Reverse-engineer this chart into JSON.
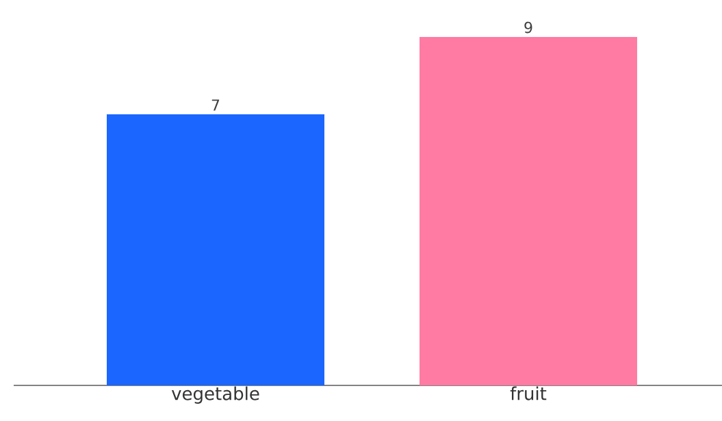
{
  "chart_data": {
    "type": "bar",
    "categories": [
      "vegetable",
      "fruit"
    ],
    "values": [
      7,
      9
    ],
    "colors": [
      "#1a66ff",
      "#ff7ba3"
    ],
    "data_labels": true
  }
}
